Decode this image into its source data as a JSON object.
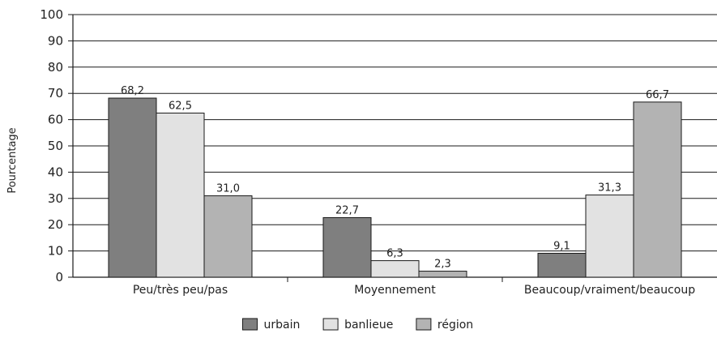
{
  "chart_data": {
    "type": "bar",
    "title": "",
    "xlabel": "",
    "ylabel": "Pourcentage",
    "ylim": [
      0,
      100
    ],
    "yticks": [
      0,
      10,
      20,
      30,
      40,
      50,
      60,
      70,
      80,
      90,
      100
    ],
    "categories": [
      "Peu/très peu/pas",
      "Moyennement",
      "Beaucoup/vraiment/beaucoup"
    ],
    "series": [
      {
        "name": "urbain",
        "values": [
          68.2,
          22.7,
          9.1
        ],
        "labels": [
          "68,2",
          "22,7",
          "9,1"
        ],
        "color": "#7f7f7f"
      },
      {
        "name": "banlieue",
        "values": [
          62.5,
          6.3,
          31.3
        ],
        "labels": [
          "62,5",
          "6,3",
          "31,3"
        ],
        "color": "#e2e2e2"
      },
      {
        "name": "région",
        "values": [
          31.0,
          2.3,
          66.7
        ],
        "labels": [
          "31,0",
          "2,3",
          "66,7"
        ],
        "color": "#b3b3b3"
      }
    ],
    "grid": true,
    "legend_position": "bottom"
  }
}
